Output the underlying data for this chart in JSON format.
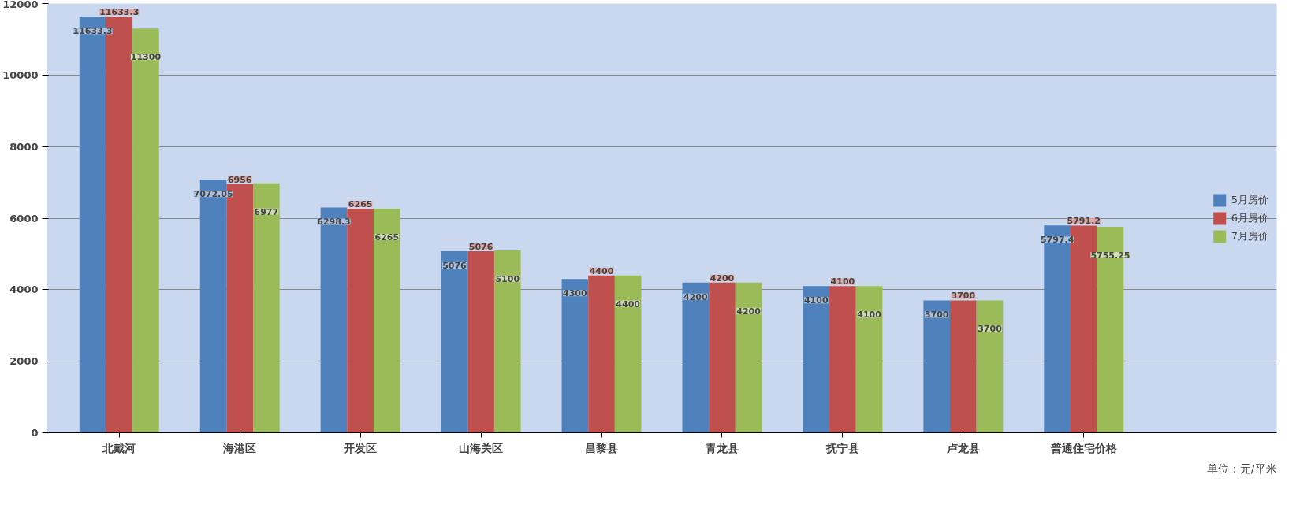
{
  "chart_data": {
    "type": "bar",
    "categories": [
      "北戴河",
      "海港区",
      "开发区",
      "山海关区",
      "昌黎县",
      "青龙县",
      "抚宁县",
      "卢龙县",
      "普通住宅价格"
    ],
    "series": [
      {
        "name": "5月房价",
        "color": "#4f81bd",
        "values": [
          11633.3,
          7072.05,
          6298.3,
          5076,
          4300,
          4200,
          4100,
          3700,
          5797.4
        ]
      },
      {
        "name": "6月房价",
        "color": "#c0504d",
        "values": [
          11633.3,
          6956,
          6265,
          5076,
          4400,
          4200,
          4100,
          3700,
          5791.2
        ]
      },
      {
        "name": "7月房价",
        "color": "#9bbb59",
        "values": [
          11300,
          6977,
          6265,
          5100,
          4400,
          4200,
          4100,
          3700,
          5755.25
        ]
      }
    ],
    "ylim": [
      0,
      12000
    ],
    "yticks": [
      0,
      2000,
      4000,
      6000,
      8000,
      10000,
      12000
    ],
    "grid": "y",
    "legend": "right",
    "data_labels": true,
    "annotations": [
      "单位：元/平米"
    ]
  }
}
